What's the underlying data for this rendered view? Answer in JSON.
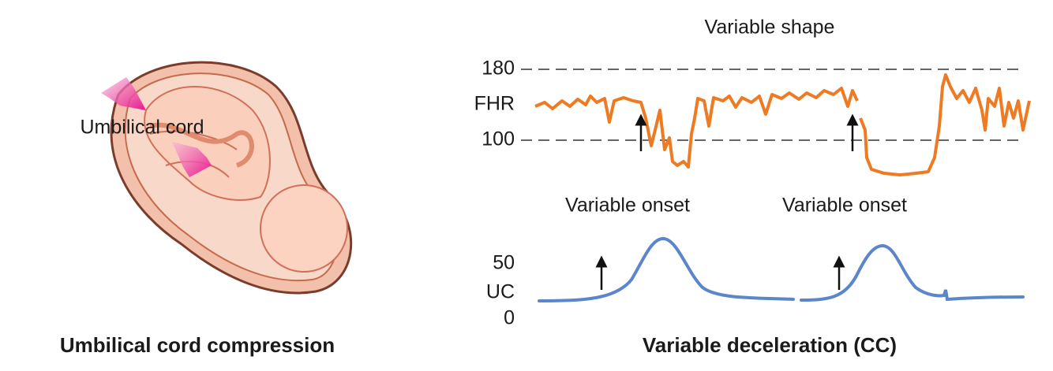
{
  "illustration": {
    "label": "Umbilical cord",
    "caption": "Umbilical cord compression"
  },
  "fhr_panel": {
    "title": "Variable shape",
    "tick_top": "180",
    "axis_label": "FHR",
    "tick_bottom": "100",
    "onset_labels": [
      "Variable onset",
      "Variable onset"
    ]
  },
  "uc_panel": {
    "tick_top": "50",
    "axis_label": "UC",
    "tick_bottom": "0"
  },
  "caption": "Variable deceleration (CC)"
}
